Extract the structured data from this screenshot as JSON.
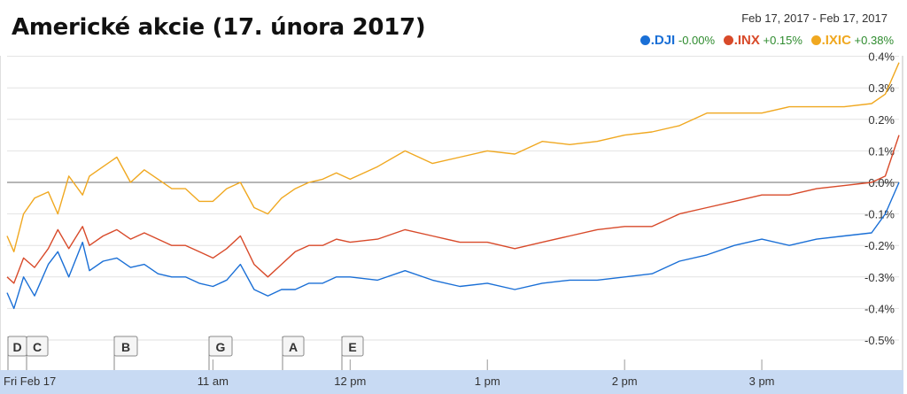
{
  "title": "Americké akcie (17. února 2017)",
  "date_range": "Feb 17, 2017  -  Feb 17, 2017",
  "legend": [
    {
      "symbol": ".DJI",
      "change": "-0.00%",
      "color": "#1a6fd6"
    },
    {
      "symbol": ".INX",
      "change": "+0.15%",
      "color": "#d84a2a"
    },
    {
      "symbol": ".IXIC",
      "change": "+0.38%",
      "color": "#f0a820"
    }
  ],
  "chart_data": {
    "type": "line",
    "title": "Americké akcie (17. února 2017)",
    "date_label": "Fri Feb 17",
    "x_ticks": [
      "Fri Feb 17",
      "11 am",
      "12 pm",
      "1 pm",
      "2 pm",
      "3 pm"
    ],
    "x_range": [
      9.5,
      16.0
    ],
    "y_ticks": [
      "0.4%",
      "0.3%",
      "0.2%",
      "0.1%",
      "0.0%",
      "-0.1%",
      "-0.2%",
      "-0.3%",
      "-0.4%",
      "-0.5%"
    ],
    "ylim": [
      -0.5,
      0.4
    ],
    "y_unit": "%",
    "grid": true,
    "legend_position": "top-right",
    "annotations": [
      "D",
      "C",
      "B",
      "G",
      "A",
      "E"
    ],
    "series": [
      {
        "name": ".DJI",
        "color": "#1a6fd6",
        "points": [
          [
            9.5,
            -0.35
          ],
          [
            9.55,
            -0.4
          ],
          [
            9.62,
            -0.3
          ],
          [
            9.7,
            -0.36
          ],
          [
            9.8,
            -0.26
          ],
          [
            9.87,
            -0.22
          ],
          [
            9.95,
            -0.3
          ],
          [
            10.05,
            -0.19
          ],
          [
            10.1,
            -0.28
          ],
          [
            10.2,
            -0.25
          ],
          [
            10.3,
            -0.24
          ],
          [
            10.4,
            -0.27
          ],
          [
            10.5,
            -0.26
          ],
          [
            10.6,
            -0.29
          ],
          [
            10.7,
            -0.3
          ],
          [
            10.8,
            -0.3
          ],
          [
            10.9,
            -0.32
          ],
          [
            11.0,
            -0.33
          ],
          [
            11.1,
            -0.31
          ],
          [
            11.2,
            -0.26
          ],
          [
            11.3,
            -0.34
          ],
          [
            11.4,
            -0.36
          ],
          [
            11.5,
            -0.34
          ],
          [
            11.6,
            -0.34
          ],
          [
            11.7,
            -0.32
          ],
          [
            11.8,
            -0.32
          ],
          [
            11.9,
            -0.3
          ],
          [
            12.0,
            -0.3
          ],
          [
            12.2,
            -0.31
          ],
          [
            12.4,
            -0.28
          ],
          [
            12.6,
            -0.31
          ],
          [
            12.8,
            -0.33
          ],
          [
            13.0,
            -0.32
          ],
          [
            13.2,
            -0.34
          ],
          [
            13.4,
            -0.32
          ],
          [
            13.6,
            -0.31
          ],
          [
            13.8,
            -0.31
          ],
          [
            14.0,
            -0.3
          ],
          [
            14.2,
            -0.29
          ],
          [
            14.4,
            -0.25
          ],
          [
            14.6,
            -0.23
          ],
          [
            14.8,
            -0.2
          ],
          [
            15.0,
            -0.18
          ],
          [
            15.2,
            -0.2
          ],
          [
            15.4,
            -0.18
          ],
          [
            15.6,
            -0.17
          ],
          [
            15.8,
            -0.16
          ],
          [
            15.9,
            -0.1
          ],
          [
            16.0,
            -0.0
          ]
        ]
      },
      {
        "name": ".INX",
        "color": "#d84a2a",
        "points": [
          [
            9.5,
            -0.3
          ],
          [
            9.55,
            -0.32
          ],
          [
            9.62,
            -0.24
          ],
          [
            9.7,
            -0.27
          ],
          [
            9.8,
            -0.21
          ],
          [
            9.87,
            -0.15
          ],
          [
            9.95,
            -0.21
          ],
          [
            10.05,
            -0.14
          ],
          [
            10.1,
            -0.2
          ],
          [
            10.2,
            -0.17
          ],
          [
            10.3,
            -0.15
          ],
          [
            10.4,
            -0.18
          ],
          [
            10.5,
            -0.16
          ],
          [
            10.6,
            -0.18
          ],
          [
            10.7,
            -0.2
          ],
          [
            10.8,
            -0.2
          ],
          [
            10.9,
            -0.22
          ],
          [
            11.0,
            -0.24
          ],
          [
            11.1,
            -0.21
          ],
          [
            11.2,
            -0.17
          ],
          [
            11.3,
            -0.26
          ],
          [
            11.4,
            -0.3
          ],
          [
            11.5,
            -0.26
          ],
          [
            11.6,
            -0.22
          ],
          [
            11.7,
            -0.2
          ],
          [
            11.8,
            -0.2
          ],
          [
            11.9,
            -0.18
          ],
          [
            12.0,
            -0.19
          ],
          [
            12.2,
            -0.18
          ],
          [
            12.4,
            -0.15
          ],
          [
            12.6,
            -0.17
          ],
          [
            12.8,
            -0.19
          ],
          [
            13.0,
            -0.19
          ],
          [
            13.2,
            -0.21
          ],
          [
            13.4,
            -0.19
          ],
          [
            13.6,
            -0.17
          ],
          [
            13.8,
            -0.15
          ],
          [
            14.0,
            -0.14
          ],
          [
            14.2,
            -0.14
          ],
          [
            14.4,
            -0.1
          ],
          [
            14.6,
            -0.08
          ],
          [
            14.8,
            -0.06
          ],
          [
            15.0,
            -0.04
          ],
          [
            15.2,
            -0.04
          ],
          [
            15.4,
            -0.02
          ],
          [
            15.6,
            -0.01
          ],
          [
            15.8,
            0.0
          ],
          [
            15.9,
            0.02
          ],
          [
            16.0,
            0.15
          ]
        ]
      },
      {
        "name": ".IXIC",
        "color": "#f0a820",
        "points": [
          [
            9.5,
            -0.17
          ],
          [
            9.55,
            -0.22
          ],
          [
            9.62,
            -0.1
          ],
          [
            9.7,
            -0.05
          ],
          [
            9.8,
            -0.03
          ],
          [
            9.87,
            -0.1
          ],
          [
            9.95,
            0.02
          ],
          [
            10.05,
            -0.04
          ],
          [
            10.1,
            0.02
          ],
          [
            10.2,
            0.05
          ],
          [
            10.3,
            0.08
          ],
          [
            10.4,
            0.0
          ],
          [
            10.5,
            0.04
          ],
          [
            10.6,
            0.01
          ],
          [
            10.7,
            -0.02
          ],
          [
            10.8,
            -0.02
          ],
          [
            10.9,
            -0.06
          ],
          [
            11.0,
            -0.06
          ],
          [
            11.1,
            -0.02
          ],
          [
            11.2,
            0.0
          ],
          [
            11.3,
            -0.08
          ],
          [
            11.4,
            -0.1
          ],
          [
            11.5,
            -0.05
          ],
          [
            11.6,
            -0.02
          ],
          [
            11.7,
            0.0
          ],
          [
            11.8,
            0.01
          ],
          [
            11.9,
            0.03
          ],
          [
            12.0,
            0.01
          ],
          [
            12.2,
            0.05
          ],
          [
            12.4,
            0.1
          ],
          [
            12.6,
            0.06
          ],
          [
            12.8,
            0.08
          ],
          [
            13.0,
            0.1
          ],
          [
            13.2,
            0.09
          ],
          [
            13.4,
            0.13
          ],
          [
            13.6,
            0.12
          ],
          [
            13.8,
            0.13
          ],
          [
            14.0,
            0.15
          ],
          [
            14.2,
            0.16
          ],
          [
            14.4,
            0.18
          ],
          [
            14.6,
            0.22
          ],
          [
            14.8,
            0.22
          ],
          [
            15.0,
            0.22
          ],
          [
            15.2,
            0.24
          ],
          [
            15.4,
            0.24
          ],
          [
            15.6,
            0.24
          ],
          [
            15.8,
            0.25
          ],
          [
            15.9,
            0.28
          ],
          [
            16.0,
            0.38
          ]
        ]
      }
    ]
  }
}
